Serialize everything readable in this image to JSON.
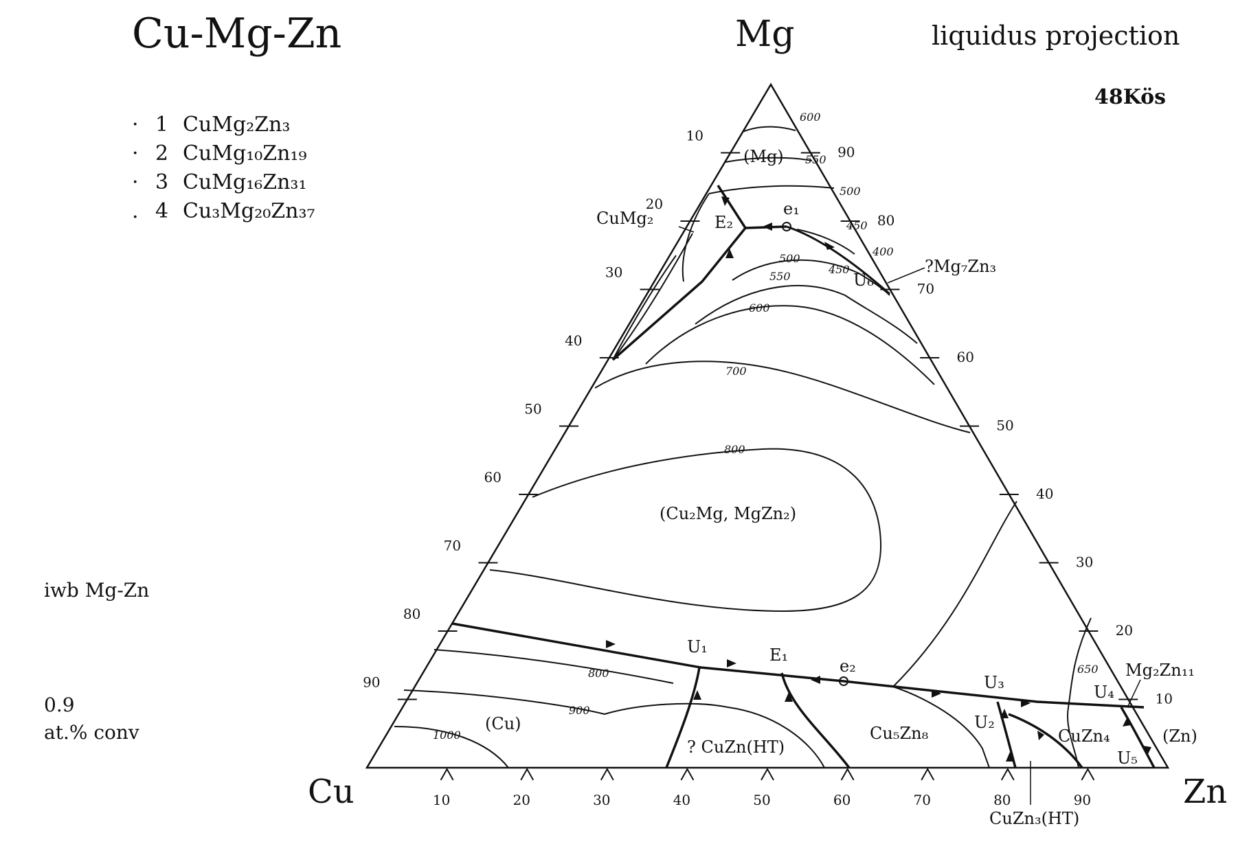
{
  "diagram": {
    "system": "Cu-Mg-Zn",
    "title": "Cu-Mg-Zn",
    "projection_label": "liquidus projection",
    "reference_code": "48Kös",
    "source_note": "iwb Mg-Zn",
    "conversion_value": "0.9",
    "conversion_label": "at.% conv",
    "corners": {
      "top": "Mg",
      "left": "Cu",
      "right": "Zn"
    },
    "compounds": [
      {
        "marker": "·",
        "num": "1",
        "formula": "CuMg₂Zn₃"
      },
      {
        "marker": "·",
        "num": "2",
        "formula": "CuMg₁₀Zn₁₉"
      },
      {
        "marker": "·",
        "num": "3",
        "formula": "CuMg₁₆Zn₃₁"
      },
      {
        "marker": ".",
        "num": "4",
        "formula": "Cu₃Mg₂₀Zn₃₇"
      }
    ],
    "axis_ticks": {
      "bottom": [
        "10",
        "20",
        "30",
        "40",
        "50",
        "60",
        "70",
        "80",
        "90"
      ],
      "left": [
        "10",
        "20",
        "30",
        "40",
        "50",
        "60",
        "70",
        "80",
        "90"
      ],
      "right": [
        "90",
        "80",
        "70",
        "60",
        "50",
        "40",
        "30",
        "20",
        "10"
      ]
    },
    "phase_fields": [
      "(Mg)",
      "(Cu₂Mg, MgZn₂)",
      "(Cu)",
      "(Zn)"
    ],
    "phase_labels": [
      "CuMg₂",
      "?Mg₇Zn₃",
      "Mg₂Zn₁₁",
      "? CuZn(HT)",
      "Cu₅Zn₈",
      "CuZn₄",
      "CuZn₃(HT)"
    ],
    "invariant_points": [
      "E₂",
      "e₁",
      "U₆",
      "U₁",
      "E₁",
      "e₂",
      "U₃",
      "U₂",
      "U₄",
      "U₅"
    ],
    "isotherm_labels": [
      "600",
      "550",
      "500",
      "450",
      "400",
      "500",
      "450",
      "550",
      "600",
      "700",
      "800",
      "800",
      "900",
      "1000",
      "650"
    ]
  }
}
